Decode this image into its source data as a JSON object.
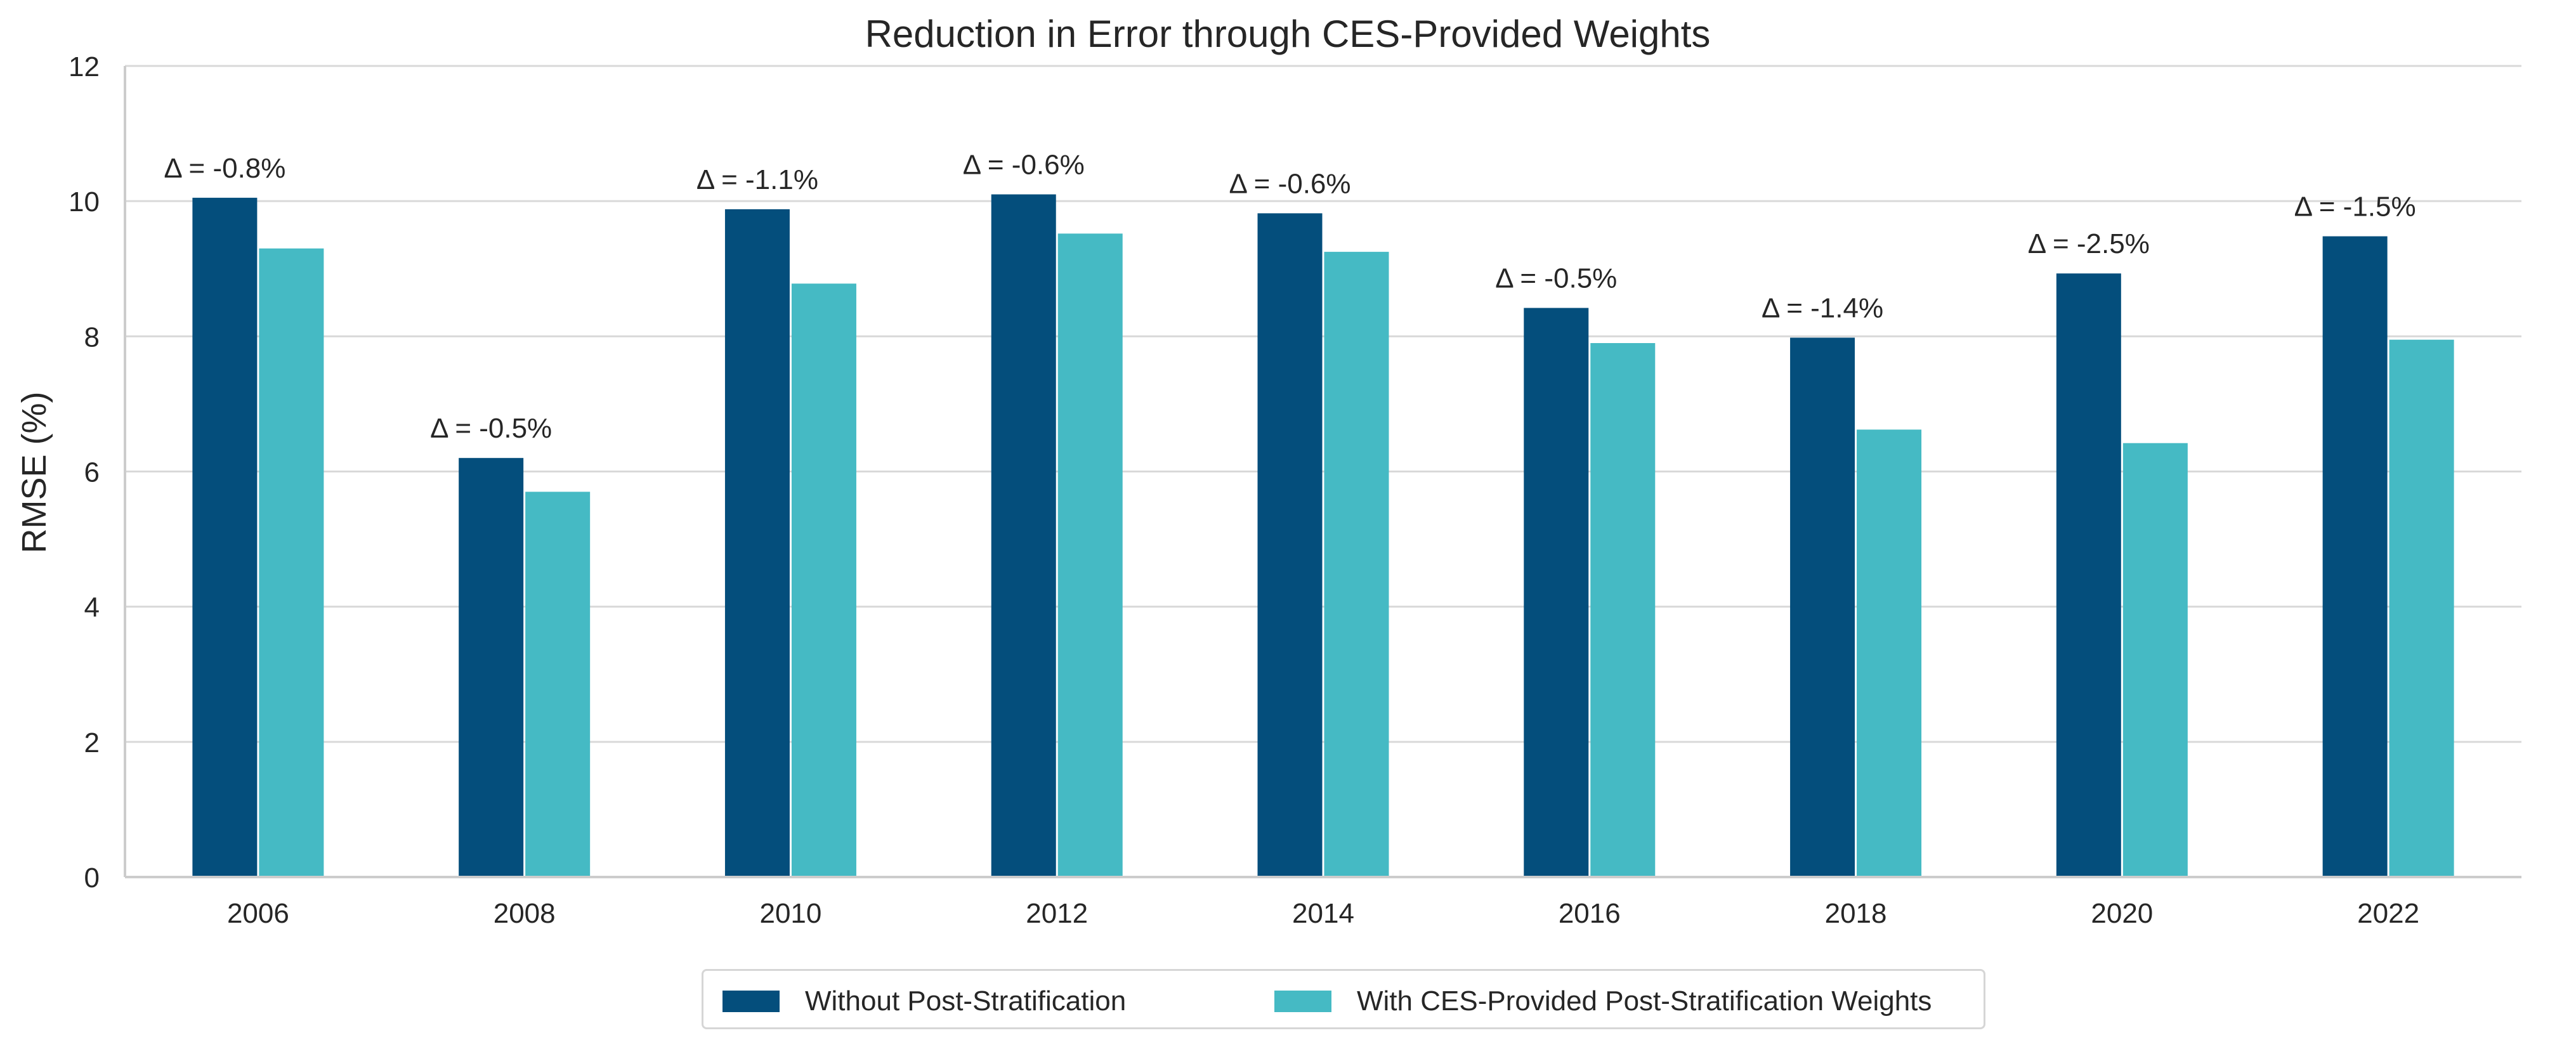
{
  "chart_data": {
    "type": "bar",
    "title": "Reduction in Error through CES-Provided Weights",
    "xlabel": "",
    "ylabel": "RMSE (%)",
    "ylim": [
      0,
      12
    ],
    "yticks": [
      0,
      2,
      4,
      6,
      8,
      10,
      12
    ],
    "grid": "horizontal",
    "legend_position": "bottom-center",
    "categories": [
      "2006",
      "2008",
      "2010",
      "2012",
      "2014",
      "2016",
      "2018",
      "2020",
      "2022"
    ],
    "series": [
      {
        "name": "Without Post-Stratification",
        "color": "#044e7c",
        "values": [
          10.05,
          6.2,
          9.88,
          10.1,
          9.82,
          8.42,
          7.98,
          8.93,
          9.48
        ]
      },
      {
        "name": "With CES-Provided Post-Stratification Weights",
        "color": "#45bac4",
        "values": [
          9.3,
          5.7,
          8.78,
          9.52,
          9.25,
          7.9,
          6.62,
          6.42,
          7.95
        ]
      }
    ],
    "annotations": [
      "Δ = -0.8%",
      "Δ = -0.5%",
      "Δ = -1.1%",
      "Δ = -0.6%",
      "Δ = -0.6%",
      "Δ = -0.5%",
      "Δ = -1.4%",
      "Δ = -2.5%",
      "Δ = -1.5%"
    ]
  }
}
